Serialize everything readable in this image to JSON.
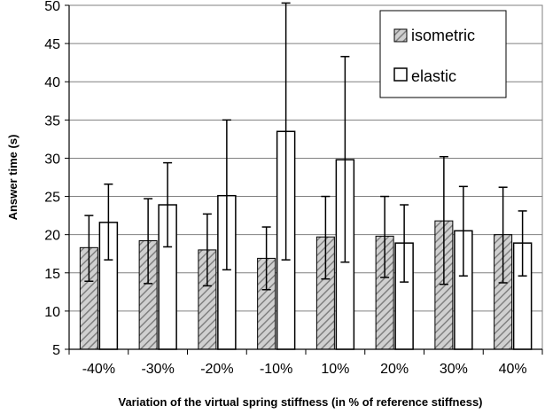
{
  "chart_data": {
    "type": "bar",
    "title": "",
    "xlabel": "Variation of the virtual spring stiffness (in % of reference stiffness)",
    "ylabel": "Answer time (s)",
    "categories": [
      "-40%",
      "-30%",
      "-20%",
      "-10%",
      "10%",
      "20%",
      "30%",
      "40%"
    ],
    "ylim": [
      5,
      50
    ],
    "yticks": [
      5,
      10,
      15,
      20,
      25,
      30,
      35,
      40,
      45,
      50
    ],
    "grid": "horizontal",
    "legend_position": "top-right",
    "series": [
      {
        "name": "isometric",
        "pattern": "hatched",
        "values": [
          18.3,
          19.2,
          18.0,
          16.9,
          19.7,
          19.8,
          21.8,
          20.0
        ],
        "error_low": [
          13.9,
          13.6,
          13.3,
          12.8,
          14.2,
          14.4,
          13.5,
          13.7
        ],
        "error_high": [
          22.5,
          24.7,
          22.7,
          21.0,
          25.0,
          25.0,
          30.2,
          26.2
        ]
      },
      {
        "name": "elastic",
        "pattern": "white",
        "values": [
          21.6,
          23.9,
          25.1,
          33.5,
          29.8,
          18.9,
          20.5,
          18.9
        ],
        "error_low": [
          16.7,
          18.4,
          15.4,
          16.7,
          16.4,
          13.8,
          14.6,
          14.6
        ],
        "error_high": [
          26.6,
          29.4,
          35.0,
          50.3,
          43.3,
          23.9,
          26.3,
          23.1
        ]
      }
    ],
    "colors": {
      "frame": "#808080",
      "grid": "#808080",
      "bar_outline": "#000000",
      "hatch_bg": "#d0d0d0",
      "hatch_line": "#808080",
      "elastic_fill": "#ffffff"
    }
  }
}
